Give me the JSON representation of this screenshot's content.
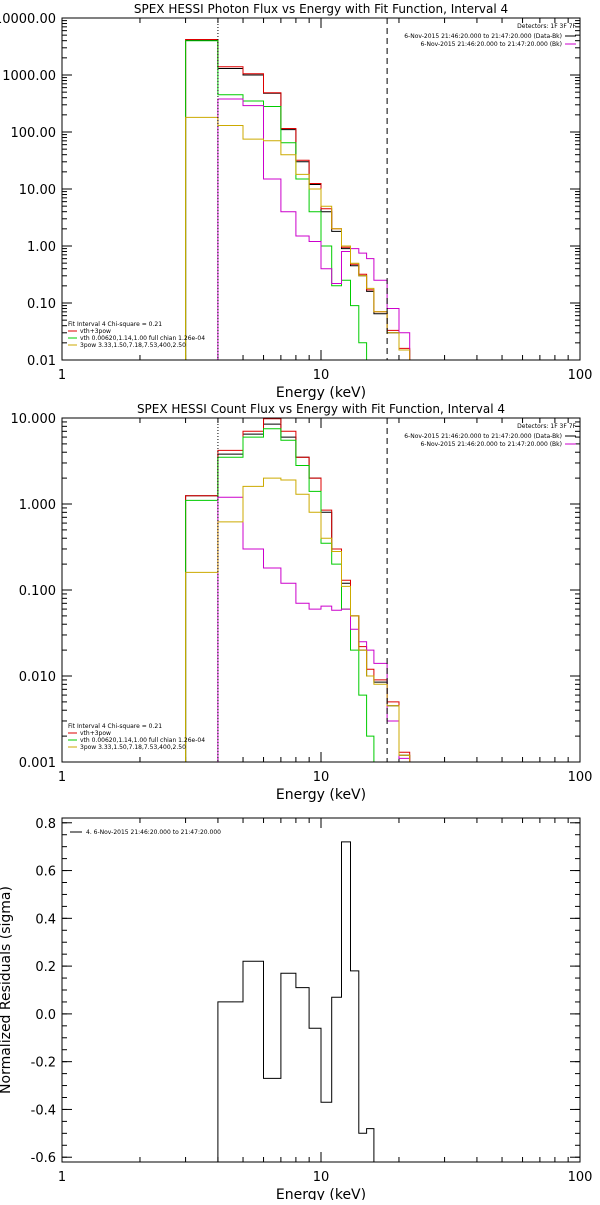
{
  "chart_data": [
    {
      "type": "line",
      "title": "SPEX HESSI Photon Flux vs Energy with Fit Function, Interval 4",
      "xlabel": "Energy (keV)",
      "ylabel": "",
      "xlog": true,
      "ylog": true,
      "xlim": [
        1,
        100
      ],
      "ylim": [
        0.01,
        10000
      ],
      "x_ticks": [
        {
          "v": 1,
          "label": "1"
        },
        {
          "v": 10,
          "label": "10"
        },
        {
          "v": 100,
          "label": "100"
        }
      ],
      "y_ticks": [
        {
          "v": 10000,
          "label": "10000.00"
        },
        {
          "v": 1000,
          "label": "1000.00"
        },
        {
          "v": 100,
          "label": "100.00"
        },
        {
          "v": 10,
          "label": "10.00"
        },
        {
          "v": 1,
          "label": "1.00"
        },
        {
          "v": 0.1,
          "label": "0.10"
        },
        {
          "v": 0.01,
          "label": "0.01"
        }
      ],
      "vlines": [
        {
          "x": 4.0,
          "style": "dotted"
        },
        {
          "x": 18.0,
          "style": "dashed"
        }
      ],
      "fit_info": "Fit Interval 4   Chi-square = 0.21",
      "detectors": "Detectors: 1F 3F 7F",
      "legend_right": [
        {
          "label": "6-Nov-2015 21:46:20.000 to 21:47:20.000 (Data-Bk)",
          "color": "#000000"
        },
        {
          "label": "6-Nov-2015 21:46:20.000 to 21:47:20.000 (Bk)",
          "color": "#cc00cc"
        }
      ],
      "legend_left": [
        {
          "label": "vth+3pow",
          "color": "#dd0000"
        },
        {
          "label": "vth 0.00620,1.14,1.00   full chian 1.26e-04",
          "color": "#00cc00"
        },
        {
          "label": "3pow 3.33,1.50,7.18,7.53,400,2.50",
          "color": "#ccaa00"
        }
      ],
      "bin_edges": [
        3,
        4,
        5,
        6,
        7,
        8,
        9,
        10,
        11,
        12,
        13,
        14,
        15,
        16,
        18,
        20,
        22,
        25
      ],
      "series": [
        {
          "color": "#000000",
          "values": [
            4100,
            1300,
            1000,
            480,
            110,
            30,
            12,
            4,
            1.8,
            0.9,
            0.45,
            0.3,
            0.16,
            0.065,
            0.03,
            0.015,
            null
          ]
        },
        {
          "color": "#dd0000",
          "values": [
            4200,
            1400,
            1050,
            490,
            115,
            32,
            12.5,
            4.5,
            2.0,
            0.95,
            0.48,
            0.32,
            0.17,
            0.07,
            0.033,
            0.016,
            null
          ]
        },
        {
          "color": "#00cc00",
          "values": [
            4000,
            450,
            350,
            280,
            65,
            15,
            4,
            1,
            0.2,
            0.25,
            0.09,
            0.02,
            0.01,
            null,
            null,
            null,
            null
          ]
        },
        {
          "color": "#cc00cc",
          "values": [
            null,
            380,
            290,
            15,
            4,
            1.5,
            1.2,
            0.4,
            0.22,
            0.8,
            0.9,
            0.75,
            0.6,
            0.25,
            0.08,
            0.03,
            null
          ]
        },
        {
          "color": "#ccaa00",
          "values": [
            180,
            130,
            75,
            70,
            40,
            18,
            10,
            5,
            2.0,
            1.0,
            0.5,
            0.3,
            0.18,
            0.07,
            0.03,
            0.015,
            null
          ]
        }
      ]
    },
    {
      "type": "line",
      "title": "SPEX HESSI Count Flux vs Energy with Fit Function, Interval 4",
      "xlabel": "Energy (keV)",
      "ylabel": "",
      "xlog": true,
      "ylog": true,
      "xlim": [
        1,
        100
      ],
      "ylim": [
        0.001,
        10
      ],
      "x_ticks": [
        {
          "v": 1,
          "label": "1"
        },
        {
          "v": 10,
          "label": "10"
        },
        {
          "v": 100,
          "label": "100"
        }
      ],
      "y_ticks": [
        {
          "v": 10,
          "label": "10.000"
        },
        {
          "v": 1,
          "label": "1.000"
        },
        {
          "v": 0.1,
          "label": "0.100"
        },
        {
          "v": 0.01,
          "label": "0.010"
        },
        {
          "v": 0.001,
          "label": "0.001"
        }
      ],
      "vlines": [
        {
          "x": 4.0,
          "style": "dotted"
        },
        {
          "x": 18.0,
          "style": "dashed"
        }
      ],
      "fit_info": "Fit Interval 4   Chi-square = 0.21",
      "detectors": "Detectors: 1F 3F 7F",
      "legend_right": [
        {
          "label": "6-Nov-2015 21:46:20.000 to 21:47:20.000 (Data-Bk)",
          "color": "#000000"
        },
        {
          "label": "6-Nov-2015 21:46:20.000 to 21:47:20.000 (Bk)",
          "color": "#cc00cc"
        }
      ],
      "legend_left": [
        {
          "label": "vth+3pow",
          "color": "#dd0000"
        },
        {
          "label": "vth 0.00620,1.14,1.00   full chian 1.26e-04",
          "color": "#00cc00"
        },
        {
          "label": "3pow 3.33,1.50,7.18,7.53,400,2.50",
          "color": "#ccaa00"
        }
      ],
      "bin_edges": [
        3,
        4,
        5,
        6,
        7,
        8,
        9,
        10,
        11,
        12,
        13,
        14,
        15,
        16,
        18,
        20,
        22,
        25
      ],
      "series": [
        {
          "color": "#000000",
          "values": [
            1.25,
            3.8,
            6.5,
            8.5,
            6.0,
            3.5,
            2.0,
            0.8,
            0.28,
            0.12,
            0.05,
            0.02,
            0.01,
            0.0085,
            0.0045,
            0.0012,
            null
          ]
        },
        {
          "color": "#dd0000",
          "values": [
            1.25,
            4.2,
            7.0,
            9.8,
            7.0,
            3.5,
            2.0,
            0.85,
            0.3,
            0.13,
            0.05,
            0.022,
            0.012,
            0.009,
            0.005,
            0.0013,
            null
          ]
        },
        {
          "color": "#00cc00",
          "values": [
            1.1,
            3.5,
            6.0,
            7.5,
            5.5,
            2.8,
            1.4,
            0.35,
            0.2,
            0.06,
            0.02,
            0.006,
            0.002,
            null,
            null,
            null,
            null
          ]
        },
        {
          "color": "#cc00cc",
          "values": [
            null,
            1.2,
            0.3,
            0.18,
            0.12,
            0.07,
            0.06,
            0.065,
            0.058,
            0.06,
            0.035,
            0.025,
            0.02,
            0.014,
            0.003,
            0.0011,
            null
          ]
        },
        {
          "color": "#ccaa00",
          "values": [
            0.16,
            0.62,
            1.6,
            2.0,
            1.9,
            1.3,
            0.8,
            0.4,
            0.28,
            0.11,
            0.05,
            0.02,
            0.01,
            0.008,
            0.0045,
            0.0012,
            null
          ]
        }
      ]
    },
    {
      "type": "line",
      "title": "",
      "xlabel": "Energy (keV)",
      "ylabel": "Normalized Residuals (sigma)",
      "xlog": true,
      "ylog": false,
      "xlim": [
        1,
        100
      ],
      "ylim": [
        -0.62,
        0.82
      ],
      "x_ticks": [
        {
          "v": 1,
          "label": "1"
        },
        {
          "v": 10,
          "label": "10"
        },
        {
          "v": 100,
          "label": "100"
        }
      ],
      "y_ticks": [
        {
          "v": 0.8,
          "label": "0.8"
        },
        {
          "v": 0.6,
          "label": "0.6"
        },
        {
          "v": 0.4,
          "label": "0.4"
        },
        {
          "v": 0.2,
          "label": "0.2"
        },
        {
          "v": 0.0,
          "label": "0.0"
        },
        {
          "v": -0.2,
          "label": "-0.2"
        },
        {
          "v": -0.4,
          "label": "-0.4"
        },
        {
          "v": -0.6,
          "label": "-0.6"
        }
      ],
      "legend_right": [],
      "legend_left": [],
      "legend_top": [
        {
          "label": "4.  6-Nov-2015 21:46:20.000 to 21:47:20.000",
          "color": "#000000"
        }
      ],
      "bin_edges": [
        4,
        5,
        6,
        7,
        8,
        9,
        10,
        11,
        12,
        13,
        14,
        15,
        16,
        18
      ],
      "series": [
        {
          "color": "#000000",
          "values": [
            0.05,
            0.22,
            -0.27,
            0.17,
            0.11,
            -0.06,
            -0.37,
            0.07,
            0.72,
            0.18,
            -0.5,
            -0.48,
            -0.62
          ]
        }
      ]
    }
  ]
}
